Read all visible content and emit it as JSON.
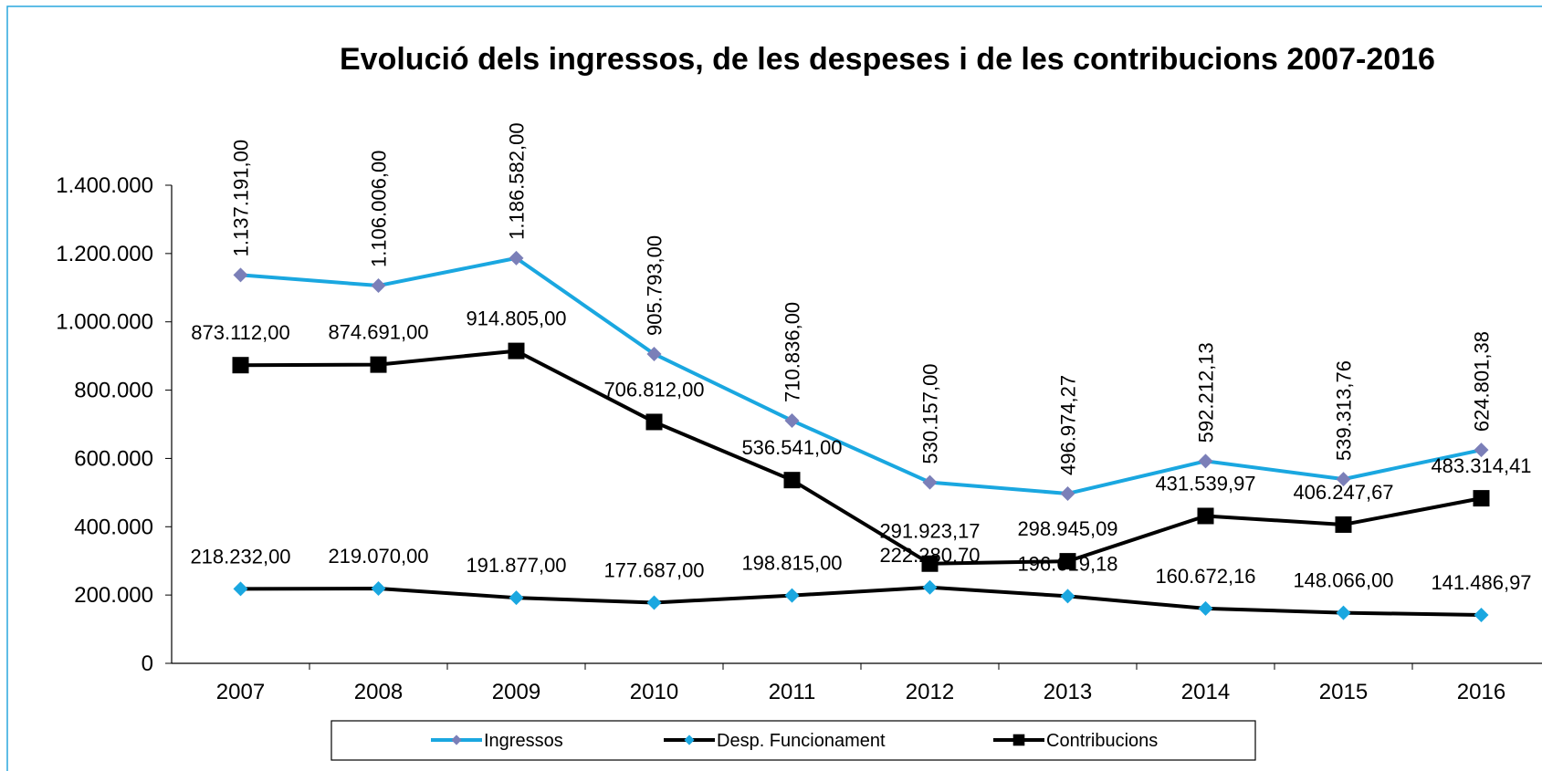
{
  "chart_data": {
    "type": "line",
    "title": "Evolució dels ingressos, de les despeses i de les contribucions 2007-2016",
    "categories": [
      "2007",
      "2008",
      "2009",
      "2010",
      "2011",
      "2012",
      "2013",
      "2014",
      "2015",
      "2016"
    ],
    "ylim": [
      0,
      1400000
    ],
    "yticks": [
      {
        "value": 0,
        "label": "0"
      },
      {
        "value": 200000,
        "label": "200.000"
      },
      {
        "value": 400000,
        "label": "400.000"
      },
      {
        "value": 600000,
        "label": "600.000"
      },
      {
        "value": 800000,
        "label": "800.000"
      },
      {
        "value": 1000000,
        "label": "1.000.000"
      },
      {
        "value": 1200000,
        "label": "1.200.000"
      },
      {
        "value": 1400000,
        "label": "1.400.000"
      }
    ],
    "grid": false,
    "legend": "bottom",
    "series": [
      {
        "name": "Ingressos",
        "color": "#1aa7e0",
        "marker": "diamond",
        "marker_color": "#7b7fb8",
        "label_rotation": "vertical",
        "values": [
          1137191.0,
          1106006.0,
          1186582.0,
          905793.0,
          710836.0,
          530157.0,
          496974.27,
          592212.13,
          539313.76,
          624801.38
        ],
        "value_labels": [
          "1.137.191,00",
          "1.106.006,00",
          "1.186.582,00",
          "905.793,00",
          "710.836,00",
          "530.157,00",
          "496.974,27",
          "592.212,13",
          "539.313,76",
          "624.801,38"
        ]
      },
      {
        "name": "Desp. Funcionament",
        "color": "#000000",
        "marker": "diamond",
        "marker_color": "#1aa7e0",
        "label_rotation": "horizontal",
        "values": [
          218232.0,
          219070.0,
          191877.0,
          177687.0,
          198815.0,
          222280.7,
          196619.18,
          160672.16,
          148066.0,
          141486.97
        ],
        "value_labels": [
          "218.232,00",
          "219.070,00",
          "191.877,00",
          "177.687,00",
          "198.815,00",
          "222.280,70",
          "196.619,18",
          "160.672,16",
          "148.066,00",
          "141.486,97"
        ]
      },
      {
        "name": "Contribucions",
        "color": "#000000",
        "marker": "square",
        "marker_color": "#000000",
        "label_rotation": "horizontal",
        "values": [
          873112.0,
          874691.0,
          914805.0,
          706812.0,
          536541.0,
          291923.17,
          298945.09,
          431539.97,
          406247.67,
          483314.41
        ],
        "value_labels": [
          "873.112,00",
          "874.691,00",
          "914.805,00",
          "706.812,00",
          "536.541,00",
          "291.923,17",
          "298.945,09",
          "431.539,97",
          "406.247,67",
          "483.314,41"
        ]
      }
    ]
  }
}
